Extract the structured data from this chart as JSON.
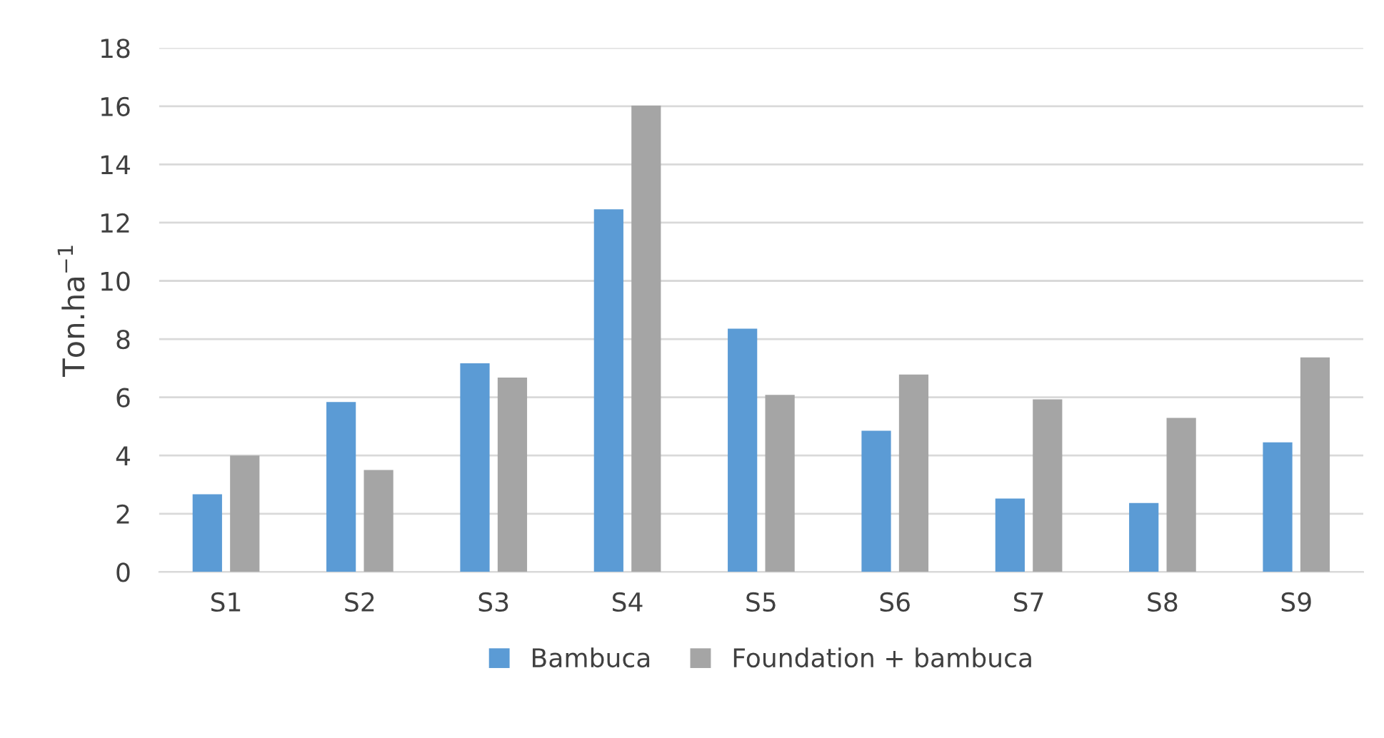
{
  "chart_data": {
    "type": "bar",
    "ylabel": "Ton.ha$^{−1}$",
    "categories": [
      "S1",
      "S2",
      "S3",
      "S4",
      "S5",
      "S6",
      "S7",
      "S8",
      "S9"
    ],
    "series": [
      {
        "name": "Bambuca",
        "color": "#5b9bd5",
        "values": [
          2.67,
          5.84,
          7.17,
          12.46,
          8.36,
          4.85,
          2.52,
          2.37,
          4.45
        ]
      },
      {
        "name": "Foundation + bambuca",
        "color": "#a5a5a5",
        "values": [
          4.0,
          3.5,
          6.68,
          16.02,
          6.08,
          6.78,
          5.93,
          5.29,
          7.37
        ]
      }
    ],
    "ylim": [
      0,
      18
    ],
    "yticks": [
      0,
      2,
      4,
      6,
      8,
      10,
      12,
      14,
      16,
      18
    ],
    "grid": "y",
    "legend": "bottom"
  }
}
